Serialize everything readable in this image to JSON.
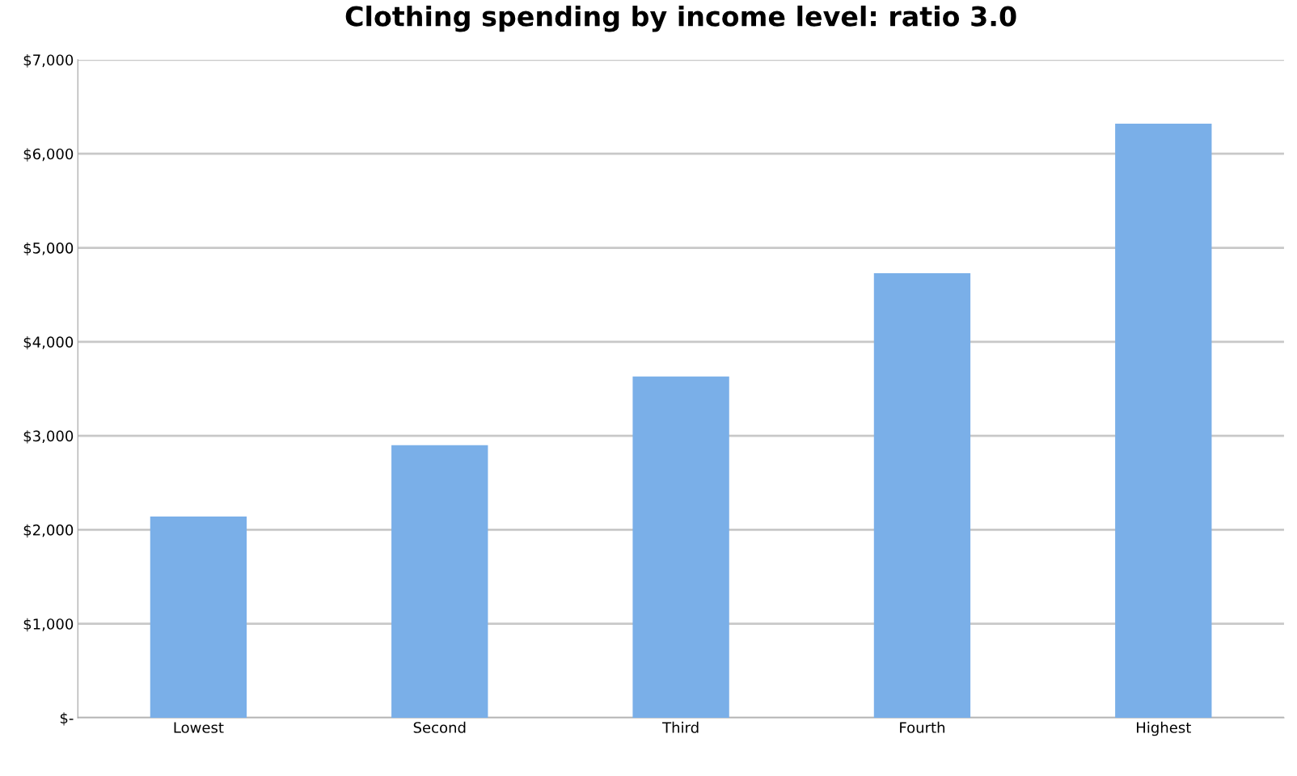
{
  "chart_data": {
    "type": "bar",
    "title": "Clothing spending by income level: ratio 3.0",
    "categories": [
      "Lowest",
      "Second",
      "Third",
      "Fourth",
      "Highest"
    ],
    "values": [
      2140,
      2900,
      3630,
      4730,
      6320
    ],
    "color": "#7aafe8",
    "ylim": [
      0,
      7000
    ],
    "yticks": [
      {
        "value": 0,
        "label": "$-"
      },
      {
        "value": 1000,
        "label": "$1,000"
      },
      {
        "value": 2000,
        "label": "$2,000"
      },
      {
        "value": 3000,
        "label": "$3,000"
      },
      {
        "value": 4000,
        "label": "$4,000"
      },
      {
        "value": 5000,
        "label": "$5,000"
      },
      {
        "value": 6000,
        "label": "$6,000"
      },
      {
        "value": 7000,
        "label": "$7,000"
      }
    ],
    "grid": "y"
  }
}
